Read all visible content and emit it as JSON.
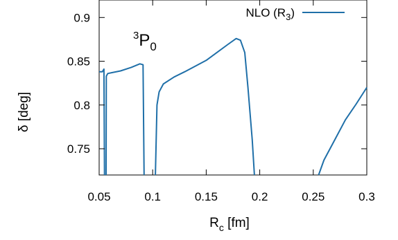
{
  "chart_data": {
    "type": "line",
    "title": "",
    "annotation": {
      "base": "P",
      "sup": "3",
      "sub": "0"
    },
    "xlabel": {
      "base": "R",
      "sub": "c",
      "suffix": " [fm]"
    },
    "ylabel": "δ [deg]",
    "xlim": [
      0.05,
      0.3
    ],
    "ylim": [
      0.72,
      0.92
    ],
    "xticks": [
      0.05,
      0.1,
      0.15,
      0.2,
      0.25,
      0.3
    ],
    "xtick_labels": [
      "0.05",
      "0.1",
      "0.15",
      "0.2",
      "0.25",
      "0.3"
    ],
    "yticks": [
      0.75,
      0.8,
      0.85,
      0.9
    ],
    "ytick_labels": [
      "0.75",
      "0.8",
      "0.85",
      "0.9"
    ],
    "grid": false,
    "legend": {
      "position": "top-right",
      "label_base": "NLO (R",
      "label_sub": "3",
      "label_suffix": ")"
    },
    "series": [
      {
        "name": "NLO (R3)",
        "color": "#1f6fa8",
        "segments": [
          [
            [
              0.05,
              0.838
            ],
            [
              0.053,
              0.838
            ],
            [
              0.054,
              0.84
            ],
            [
              0.0545,
              0.841
            ],
            [
              0.055,
              0.72
            ]
          ],
          [
            [
              0.0565,
              0.72
            ],
            [
              0.0567,
              0.833
            ],
            [
              0.058,
              0.836
            ],
            [
              0.062,
              0.837
            ],
            [
              0.07,
              0.839
            ],
            [
              0.08,
              0.843
            ],
            [
              0.088,
              0.847
            ],
            [
              0.091,
              0.846
            ],
            [
              0.092,
              0.72
            ]
          ],
          [
            [
              0.1025,
              0.72
            ],
            [
              0.104,
              0.8
            ],
            [
              0.106,
              0.815
            ],
            [
              0.11,
              0.824
            ],
            [
              0.12,
              0.832
            ],
            [
              0.13,
              0.838
            ],
            [
              0.15,
              0.851
            ],
            [
              0.16,
              0.86
            ],
            [
              0.17,
              0.869
            ],
            [
              0.178,
              0.876
            ],
            [
              0.182,
              0.874
            ],
            [
              0.186,
              0.86
            ],
            [
              0.189,
              0.82
            ],
            [
              0.193,
              0.76
            ],
            [
              0.195,
              0.72
            ]
          ],
          [
            [
              0.255,
              0.72
            ],
            [
              0.26,
              0.737
            ],
            [
              0.27,
              0.76
            ],
            [
              0.28,
              0.783
            ],
            [
              0.29,
              0.801
            ],
            [
              0.3,
              0.82
            ]
          ]
        ]
      }
    ]
  }
}
